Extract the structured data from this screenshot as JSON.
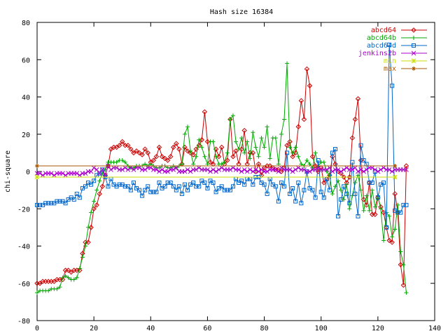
{
  "chart_data": {
    "type": "line",
    "title": "Hash size 16384",
    "xlabel": "",
    "ylabel": "chi-square",
    "xlim": [
      0,
      140
    ],
    "ylim": [
      -80,
      80
    ],
    "xticks": [
      0,
      20,
      40,
      60,
      80,
      100,
      120,
      140
    ],
    "yticks": [
      -80,
      -60,
      -40,
      -20,
      0,
      20,
      40,
      60,
      80
    ],
    "grid": false,
    "legend": "top-right",
    "series": [
      {
        "name": "abcd64",
        "color": "#cc0000",
        "marker": "diamond",
        "values": [
          -60,
          -60,
          -59,
          -59,
          -59,
          -59,
          -59,
          -58,
          -58,
          -58,
          -53,
          -53,
          -54,
          -53,
          -53,
          -53,
          -44,
          -38,
          -38,
          -30,
          -20,
          -18,
          -12,
          -8,
          -2,
          3,
          12,
          13,
          13,
          14,
          16,
          14,
          14,
          12,
          10,
          11,
          10,
          9,
          12,
          10,
          5,
          6,
          8,
          13,
          8,
          7,
          6,
          8,
          13,
          15,
          12,
          4,
          13,
          11,
          10,
          9,
          12,
          14,
          17,
          32,
          16,
          5,
          4,
          12,
          8,
          13,
          4,
          6,
          28,
          8,
          11,
          4,
          12,
          22,
          4,
          10,
          10,
          0,
          4,
          -2,
          2,
          3,
          3,
          2,
          1,
          1,
          0,
          2,
          14,
          16,
          8,
          10,
          24,
          38,
          28,
          55,
          46,
          8,
          3,
          0,
          2,
          -6,
          -4,
          -2,
          8,
          4,
          0,
          -1,
          -3,
          -6,
          -3,
          18,
          28,
          39,
          6,
          -15,
          -18,
          -6,
          -23,
          -23,
          -14,
          -19,
          -22,
          -30,
          -37,
          -38,
          -12,
          -22,
          -50,
          -61,
          3
        ]
      },
      {
        "name": "abcd64b",
        "color": "#00aa00",
        "marker": "plus",
        "values": [
          -65,
          -64,
          -64,
          -64,
          -64,
          -63,
          -63,
          -63,
          -62,
          -57,
          -56,
          -57,
          -58,
          -58,
          -57,
          -52,
          -46,
          -40,
          -30,
          -22,
          -16,
          -10,
          -5,
          -1,
          1,
          5,
          5,
          5,
          5,
          6,
          6,
          5,
          3,
          2,
          2,
          3,
          3,
          3,
          4,
          3,
          4,
          3,
          2,
          2,
          3,
          3,
          2,
          2,
          3,
          2,
          3,
          4,
          20,
          24,
          11,
          4,
          8,
          17,
          13,
          8,
          4,
          16,
          16,
          8,
          4,
          4,
          5,
          10,
          28,
          30,
          16,
          12,
          18,
          10,
          16,
          7,
          21,
          13,
          8,
          18,
          13,
          24,
          7,
          18,
          18,
          4,
          20,
          28,
          58,
          13,
          10,
          13,
          8,
          4,
          3,
          6,
          4,
          2,
          10,
          3,
          5,
          5,
          0,
          -2,
          -12,
          -8,
          -5,
          -10,
          -15,
          -7,
          -20,
          -13,
          -6,
          -2,
          -10,
          -21,
          -13,
          -21,
          -10,
          -19,
          -13,
          -20,
          -37,
          -22,
          -24,
          -35,
          -31,
          -18,
          -43,
          -50,
          -65
        ]
      },
      {
        "name": "abcd64d",
        "color": "#0066cc",
        "marker": "square",
        "values": [
          -18,
          -18,
          -18,
          -17,
          -17,
          -17,
          -17,
          -16,
          -16,
          -16,
          -17,
          -15,
          -14,
          -15,
          -12,
          -14,
          -9,
          -8,
          -6,
          -7,
          -5,
          -2,
          -1,
          1,
          -3,
          -8,
          -4,
          -7,
          -8,
          -7,
          -7,
          -8,
          -8,
          -10,
          -6,
          -9,
          -10,
          -13,
          -10,
          -8,
          -11,
          -11,
          -11,
          -6,
          -9,
          -8,
          -6,
          -6,
          -8,
          -10,
          -8,
          -12,
          -7,
          -10,
          -7,
          -6,
          -8,
          -8,
          -5,
          -6,
          -9,
          -5,
          -6,
          -11,
          -9,
          -8,
          -10,
          -10,
          -10,
          -8,
          -4,
          -6,
          -5,
          -7,
          -4,
          -4,
          -7,
          -3,
          -3,
          -6,
          -7,
          -12,
          -4,
          -7,
          -8,
          -16,
          -6,
          -8,
          10,
          -12,
          -9,
          -16,
          -6,
          -17,
          -10,
          0,
          -9,
          -10,
          -14,
          6,
          -11,
          -14,
          -4,
          -10,
          10,
          12,
          -24,
          -15,
          -8,
          -12,
          -17,
          5,
          -12,
          -24,
          14,
          6,
          4,
          -6,
          -6,
          0,
          -14,
          -7,
          -6,
          -30,
          68,
          46,
          -21,
          -22,
          -22,
          -18,
          -18
        ]
      },
      {
        "name": "jenkins2b",
        "color": "#aa00cc",
        "marker": "cross",
        "values": [
          -1,
          -1,
          -2,
          -1,
          -1,
          -1,
          -2,
          -1,
          -1,
          -1,
          -2,
          -1,
          -1,
          -1,
          -1,
          -2,
          -1,
          -1,
          0,
          0,
          2,
          1,
          -1,
          1,
          -2,
          3,
          1,
          2,
          2,
          1,
          1,
          2,
          1,
          2,
          1,
          2,
          2,
          1,
          1,
          2,
          2,
          1,
          1,
          0,
          1,
          0,
          0,
          1,
          1,
          2,
          0,
          0,
          0,
          1,
          0,
          1,
          1,
          2,
          1,
          1,
          1,
          0,
          1,
          0,
          1,
          2,
          1,
          1,
          1,
          2,
          1,
          1,
          0,
          1,
          0,
          1,
          0,
          1,
          0,
          1,
          0,
          0,
          1,
          1,
          1,
          0,
          2,
          1,
          1,
          1,
          0,
          1,
          2,
          1,
          1,
          0,
          0,
          1,
          1,
          2,
          1,
          1,
          1,
          2,
          0,
          1,
          1,
          0,
          1,
          2,
          1,
          1,
          2,
          0,
          1,
          0,
          1,
          2,
          2,
          1,
          0,
          1,
          2,
          1,
          1,
          0,
          1,
          1,
          1,
          1,
          1
        ]
      },
      {
        "name": "min",
        "color": "#ccdd00",
        "marker": "star",
        "x": [
          0,
          126
        ],
        "values": [
          -3,
          -3
        ]
      },
      {
        "name": "max",
        "color": "#aa5500",
        "marker": "asterisk",
        "x": [
          0,
          126
        ],
        "values": [
          3,
          3
        ]
      }
    ]
  }
}
